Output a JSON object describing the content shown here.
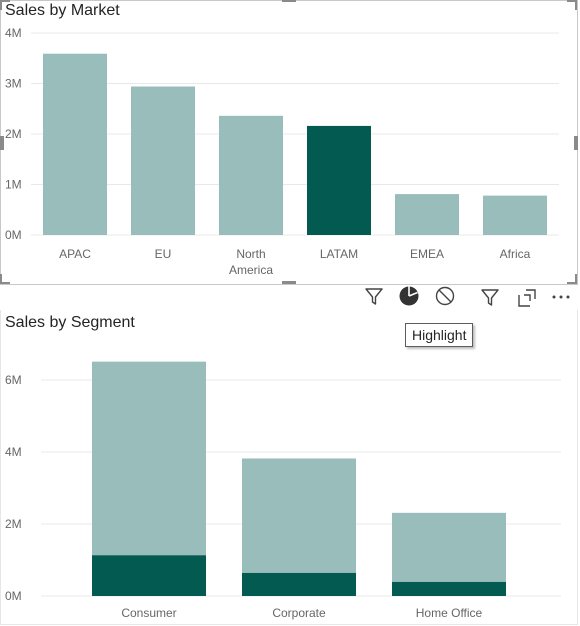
{
  "colors": {
    "normal": "#99bdba",
    "highlight": "#035a50",
    "grid": "#e8e8e8",
    "axis_text": "#666666"
  },
  "toolbar": {
    "tooltip_text": "Highlight",
    "icons": [
      "filter-icon",
      "highlight-pie-icon",
      "none-icon",
      "visual-filter-icon",
      "focus-mode-icon",
      "more-options-icon"
    ]
  },
  "chart_data": [
    {
      "type": "bar",
      "title": "Sales by Market",
      "categories": [
        "APAC",
        "EU",
        "North America",
        "LATAM",
        "EMEA",
        "Africa"
      ],
      "values": [
        3590000,
        2940000,
        2360000,
        2160000,
        810000,
        780000
      ],
      "highlighted_category": "LATAM",
      "ylim": [
        0,
        4000000
      ],
      "yticks": [
        0,
        1000000,
        2000000,
        3000000,
        4000000
      ],
      "ytick_labels": [
        "0M",
        "1M",
        "2M",
        "3M",
        "4M"
      ],
      "grid": true
    },
    {
      "type": "bar",
      "title": "Sales by Segment",
      "categories": [
        "Consumer",
        "Corporate",
        "Home Office"
      ],
      "series": [
        {
          "values": [
            6510000,
            3820000,
            2310000
          ]
        },
        {
          "values": [
            1130000,
            640000,
            390000
          ]
        }
      ],
      "ylim": [
        0,
        7000000
      ],
      "yticks": [
        0,
        2000000,
        4000000,
        6000000
      ],
      "ytick_labels": [
        "0M",
        "2M",
        "4M",
        "6M"
      ],
      "grid": true
    }
  ]
}
